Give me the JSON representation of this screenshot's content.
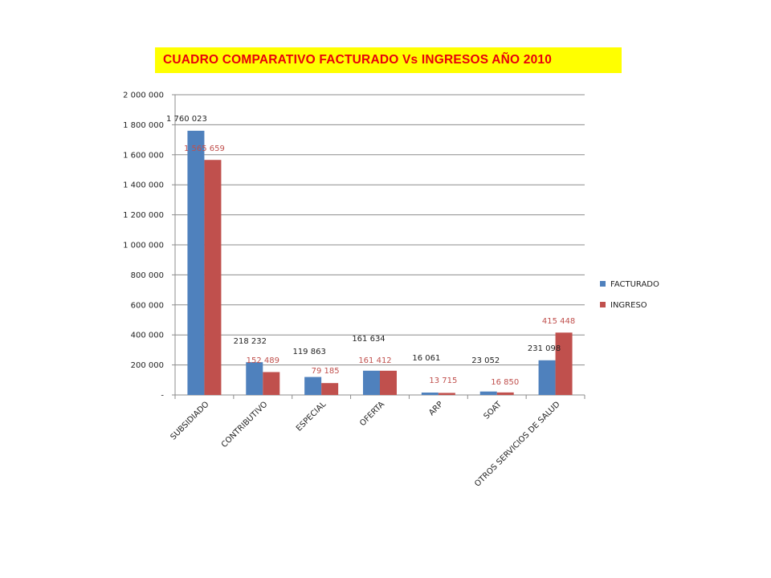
{
  "chart_data": {
    "type": "bar",
    "title": "CUADRO COMPARATIVO FACTURADO Vs INGRESOS AÑO 2010",
    "categories": [
      "SUBSIDIADO",
      "CONTRIBUTIVO",
      "ESPECIAL",
      "OFERTA",
      "ARP",
      "SOAT",
      "OTROS SERVICIOS DE SALUD"
    ],
    "series": [
      {
        "name": "FACTURADO",
        "values": [
          1760023,
          218232,
          119863,
          161634,
          16061,
          23052,
          231098
        ],
        "labels": [
          "1 760 023",
          "218 232",
          "119 863",
          "161 634",
          "16 061",
          "23 052",
          "231 098"
        ],
        "color": "#4f81bd",
        "label_color": "#222222"
      },
      {
        "name": "INGRESO",
        "values": [
          1565659,
          152489,
          79185,
          161412,
          13715,
          16850,
          415448
        ],
        "labels": [
          "1 565 659",
          "152 489",
          "79 185",
          "161 412",
          "13 715",
          "16 850",
          "415 448"
        ],
        "color": "#c0504d",
        "label_color": "#c0504d"
      }
    ],
    "ylim": [
      0,
      2000000
    ],
    "yticks": [
      0,
      200000,
      400000,
      600000,
      800000,
      1000000,
      1200000,
      1400000,
      1600000,
      1800000,
      2000000
    ],
    "ytick_labels": [
      "-",
      "200 000",
      "400 000",
      "600 000",
      "800 000",
      "1 000 000",
      "1 200 000",
      "1 400 000",
      "1 600 000",
      "1 800 000",
      "2 000 000"
    ],
    "grid": true,
    "legend_position": "right"
  },
  "colors": {
    "title_bg": "#ffff00",
    "title_text": "#e8000b",
    "grid": "#8c8c8c",
    "axis": "#8c8c8c"
  }
}
